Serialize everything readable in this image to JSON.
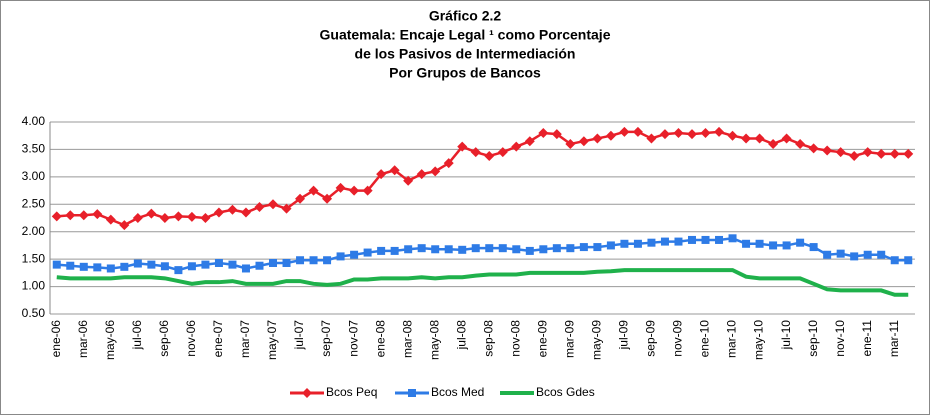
{
  "chart_data": {
    "type": "line",
    "title": [
      "Gráfico 2.2",
      "Guatemala: Encaje Legal ¹ como Porcentaje",
      "de los Pasivos de Intermediación",
      "Por Grupos de Bancos"
    ],
    "categories": [
      "ene-06",
      null,
      "mar-06",
      null,
      "may-06",
      null,
      "jul-06",
      null,
      "sep-06",
      null,
      "nov-06",
      null,
      "ene-07",
      null,
      "mar-07",
      null,
      "may-07",
      null,
      "jul-07",
      null,
      "sep-07",
      null,
      "nov-07",
      null,
      "ene-08",
      null,
      "mar-08",
      null,
      "may-08",
      null,
      "jul-08",
      null,
      "sep-08",
      null,
      "nov-08",
      null,
      "ene-09",
      null,
      "mar-09",
      null,
      "may-09",
      null,
      "jul-09",
      null,
      "sep-09",
      null,
      "nov-09",
      null,
      "ene-10",
      null,
      "mar-10",
      null,
      "may-10",
      null,
      "jul-10",
      null,
      "sep-10",
      null,
      "nov-10",
      null,
      "ene-11",
      null,
      "mar-11",
      null
    ],
    "series": [
      {
        "name": "Bcos Peq",
        "color": "#e8202a",
        "marker": "diamond",
        "values": [
          2.28,
          2.3,
          2.3,
          2.32,
          2.22,
          2.12,
          2.25,
          2.33,
          2.25,
          2.28,
          2.27,
          2.25,
          2.35,
          2.4,
          2.35,
          2.45,
          2.5,
          2.42,
          2.6,
          2.75,
          2.6,
          2.8,
          2.75,
          2.75,
          3.05,
          3.12,
          2.93,
          3.05,
          3.1,
          3.25,
          3.55,
          3.45,
          3.38,
          3.45,
          3.55,
          3.65,
          3.8,
          3.78,
          3.6,
          3.65,
          3.7,
          3.75,
          3.82,
          3.82,
          3.7,
          3.78,
          3.8,
          3.78,
          3.8,
          3.82,
          3.75,
          3.7,
          3.7,
          3.6,
          3.7,
          3.6,
          3.52,
          3.48,
          3.45,
          3.38,
          3.45,
          3.42,
          3.42,
          3.42
        ]
      },
      {
        "name": "Bcos Med",
        "color": "#2e7be6",
        "marker": "square",
        "values": [
          1.4,
          1.38,
          1.36,
          1.35,
          1.33,
          1.36,
          1.42,
          1.4,
          1.37,
          1.3,
          1.37,
          1.4,
          1.43,
          1.4,
          1.33,
          1.38,
          1.43,
          1.43,
          1.48,
          1.48,
          1.48,
          1.55,
          1.58,
          1.62,
          1.65,
          1.65,
          1.68,
          1.7,
          1.68,
          1.68,
          1.67,
          1.7,
          1.7,
          1.7,
          1.68,
          1.65,
          1.68,
          1.7,
          1.7,
          1.72,
          1.72,
          1.75,
          1.78,
          1.78,
          1.8,
          1.82,
          1.82,
          1.85,
          1.85,
          1.85,
          1.88,
          1.78,
          1.78,
          1.75,
          1.75,
          1.8,
          1.72,
          1.58,
          1.6,
          1.55,
          1.58,
          1.58,
          1.48,
          1.48
        ]
      },
      {
        "name": "Bcos Gdes",
        "color": "#1fb14b",
        "marker": "none",
        "values": [
          1.17,
          1.15,
          1.15,
          1.15,
          1.15,
          1.17,
          1.17,
          1.17,
          1.15,
          1.1,
          1.05,
          1.08,
          1.08,
          1.1,
          1.05,
          1.05,
          1.05,
          1.1,
          1.1,
          1.05,
          1.03,
          1.05,
          1.13,
          1.13,
          1.15,
          1.15,
          1.15,
          1.17,
          1.15,
          1.17,
          1.17,
          1.2,
          1.22,
          1.22,
          1.22,
          1.25,
          1.25,
          1.25,
          1.25,
          1.25,
          1.27,
          1.28,
          1.3,
          1.3,
          1.3,
          1.3,
          1.3,
          1.3,
          1.3,
          1.3,
          1.3,
          1.18,
          1.15,
          1.15,
          1.15,
          1.15,
          1.05,
          0.95,
          0.93,
          0.93,
          0.93,
          0.93,
          0.85,
          0.85
        ]
      }
    ],
    "ylim": [
      0.5,
      4.0
    ],
    "yticks": [
      {
        "value": 0.5,
        "label": "0.50"
      },
      {
        "value": 1.0,
        "label": "1.00"
      },
      {
        "value": 1.5,
        "label": "1.50"
      },
      {
        "value": 2.0,
        "label": "2.00"
      },
      {
        "value": 2.5,
        "label": "2.50"
      },
      {
        "value": 3.0,
        "label": "3.00"
      },
      {
        "value": 3.5,
        "label": "3.50"
      },
      {
        "value": 4.0,
        "label": "4.00"
      }
    ],
    "grid": true,
    "legend": "bottom"
  }
}
